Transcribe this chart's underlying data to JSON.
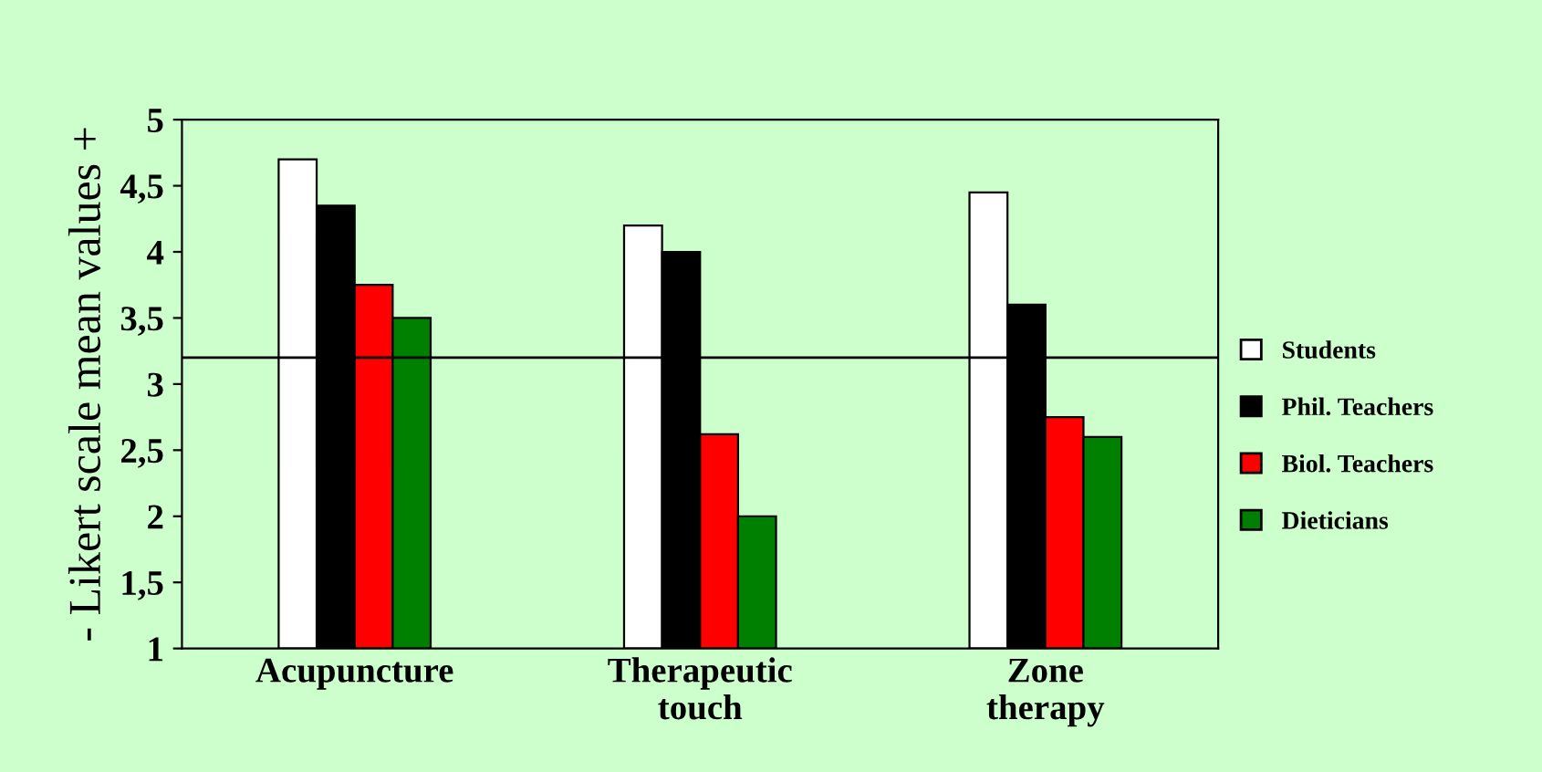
{
  "chart_data": {
    "type": "bar",
    "ylabel": "- Likert scale mean values +",
    "categories": [
      "Acupuncture",
      "Therapeutic\ntouch",
      "Zone\ntherapy"
    ],
    "series": [
      {
        "name": "Students",
        "color": "#ffffff",
        "values": [
          4.7,
          4.2,
          4.45
        ]
      },
      {
        "name": "Phil. Teachers",
        "color": "#000000",
        "values": [
          4.35,
          4.0,
          3.6
        ]
      },
      {
        "name": "Biol. Teachers",
        "color": "#ff0000",
        "values": [
          3.75,
          2.62,
          2.75
        ]
      },
      {
        "name": "Dieticians",
        "color": "#008000",
        "values": [
          3.5,
          2.0,
          2.6
        ]
      }
    ],
    "ylim": [
      1,
      5
    ],
    "yticks": [
      1,
      {
        "value": 1.5,
        "label": "1,5"
      },
      2,
      {
        "value": 2.5,
        "label": "2,5"
      },
      3,
      {
        "value": 3.5,
        "label": "3,5"
      },
      4,
      {
        "value": 4.5,
        "label": "4,5"
      },
      5
    ],
    "ref_lines": [
      {
        "axis": "y",
        "value": 3.2,
        "color": "#000000"
      }
    ],
    "grid": false,
    "legend": "right"
  }
}
